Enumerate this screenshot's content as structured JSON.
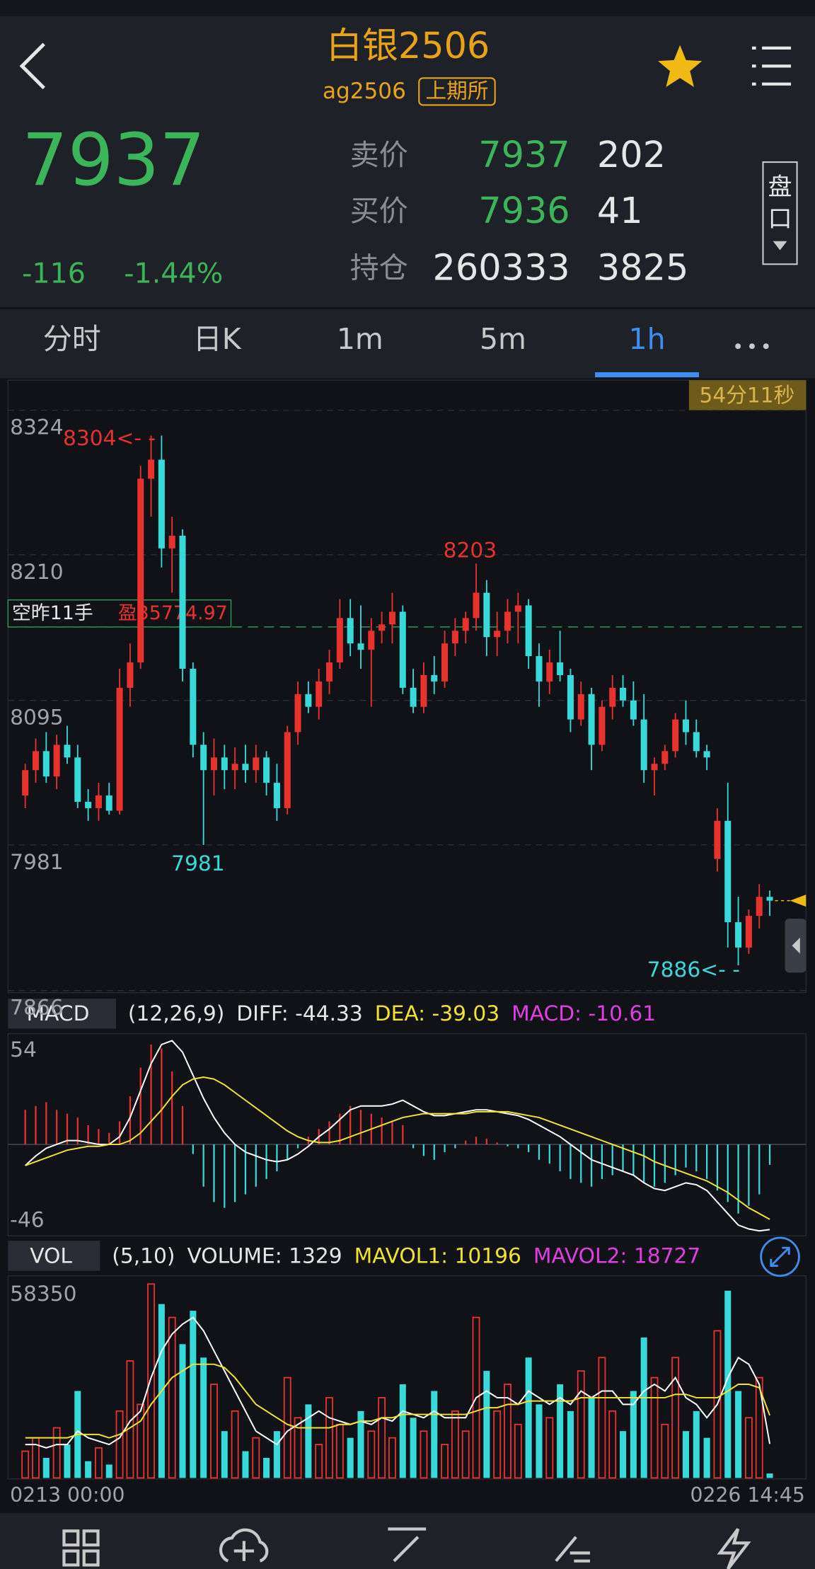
{
  "header": {
    "title": "白银2506",
    "code": "ag2506",
    "exchange": "上期所"
  },
  "quote": {
    "price": 7937,
    "change": -116,
    "change_pct": "-1.44%",
    "book": [
      {
        "label": "卖价",
        "price": 7937,
        "qty": 202
      },
      {
        "label": "买价",
        "price": 7936,
        "qty": 41
      },
      {
        "label": "持仓",
        "price": 260333,
        "qty": 3825
      }
    ],
    "depth_button": [
      "盘",
      "口"
    ]
  },
  "tabs": {
    "items": [
      "分时",
      "日K",
      "1m",
      "5m",
      "1h"
    ],
    "active": 4
  },
  "price_chart": {
    "type": "candlestick",
    "countdown": "54分11秒",
    "ylim": [
      7866,
      8324
    ],
    "yticks": [
      8324,
      8210,
      8095,
      7981,
      7866
    ],
    "up_color": "#e8322e",
    "down_color": "#38d9d9",
    "last_price": 7937,
    "position": {
      "label": "空昨11手",
      "pnl": "盈35774.97",
      "price": 8153
    },
    "annotations": [
      {
        "text": "8304<- -",
        "color": "#e8322e"
      },
      {
        "text": "8203",
        "color": "#e8322e"
      },
      {
        "text": "7981",
        "color": "#38d9d9"
      },
      {
        "text": "7886<- -",
        "color": "#38d9d9"
      }
    ],
    "candles": [
      [
        8020,
        8045,
        8010,
        8040
      ],
      [
        8040,
        8065,
        8030,
        8055
      ],
      [
        8055,
        8070,
        8030,
        8035
      ],
      [
        8035,
        8068,
        8025,
        8060
      ],
      [
        8060,
        8075,
        8045,
        8050
      ],
      [
        8050,
        8060,
        8010,
        8015
      ],
      [
        8015,
        8025,
        8000,
        8010
      ],
      [
        8010,
        8030,
        8000,
        8020
      ],
      [
        8020,
        8030,
        8005,
        8008
      ],
      [
        8008,
        8120,
        8005,
        8105
      ],
      [
        8105,
        8140,
        8090,
        8125
      ],
      [
        8125,
        8280,
        8120,
        8270
      ],
      [
        8270,
        8304,
        8240,
        8285
      ],
      [
        8285,
        8304,
        8200,
        8215
      ],
      [
        8215,
        8240,
        8180,
        8225
      ],
      [
        8225,
        8230,
        8110,
        8120
      ],
      [
        8120,
        8125,
        8050,
        8060
      ],
      [
        8060,
        8070,
        7981,
        8040
      ],
      [
        8040,
        8065,
        8020,
        8050
      ],
      [
        8050,
        8060,
        8025,
        8040
      ],
      [
        8040,
        8058,
        8025,
        8045
      ],
      [
        8045,
        8060,
        8030,
        8040
      ],
      [
        8040,
        8060,
        8030,
        8050
      ],
      [
        8050,
        8055,
        8020,
        8030
      ],
      [
        8030,
        8045,
        8000,
        8010
      ],
      [
        8010,
        8075,
        8005,
        8070
      ],
      [
        8070,
        8110,
        8060,
        8100
      ],
      [
        8100,
        8110,
        8085,
        8090
      ],
      [
        8090,
        8120,
        8080,
        8110
      ],
      [
        8110,
        8135,
        8100,
        8125
      ],
      [
        8125,
        8175,
        8120,
        8160
      ],
      [
        8160,
        8175,
        8130,
        8140
      ],
      [
        8140,
        8170,
        8120,
        8135
      ],
      [
        8135,
        8160,
        8090,
        8150
      ],
      [
        8150,
        8165,
        8140,
        8155
      ],
      [
        8155,
        8180,
        8140,
        8165
      ],
      [
        8165,
        8170,
        8100,
        8105
      ],
      [
        8105,
        8120,
        8085,
        8090
      ],
      [
        8090,
        8125,
        8085,
        8115
      ],
      [
        8115,
        8130,
        8100,
        8110
      ],
      [
        8110,
        8150,
        8105,
        8140
      ],
      [
        8140,
        8160,
        8130,
        8150
      ],
      [
        8150,
        8165,
        8140,
        8160
      ],
      [
        8160,
        8203,
        8150,
        8180
      ],
      [
        8180,
        8190,
        8130,
        8145
      ],
      [
        8145,
        8165,
        8130,
        8150
      ],
      [
        8150,
        8175,
        8140,
        8165
      ],
      [
        8165,
        8180,
        8140,
        8170
      ],
      [
        8170,
        8175,
        8120,
        8130
      ],
      [
        8130,
        8140,
        8090,
        8110
      ],
      [
        8110,
        8135,
        8100,
        8125
      ],
      [
        8125,
        8150,
        8110,
        8115
      ],
      [
        8115,
        8120,
        8070,
        8080
      ],
      [
        8080,
        8110,
        8075,
        8100
      ],
      [
        8100,
        8105,
        8040,
        8060
      ],
      [
        8060,
        8095,
        8055,
        8090
      ],
      [
        8090,
        8115,
        8080,
        8105
      ],
      [
        8105,
        8115,
        8090,
        8095
      ],
      [
        8095,
        8110,
        8075,
        8080
      ],
      [
        8080,
        8100,
        8030,
        8040
      ],
      [
        8040,
        8050,
        8020,
        8045
      ],
      [
        8045,
        8060,
        8040,
        8055
      ],
      [
        8055,
        8085,
        8050,
        8080
      ],
      [
        8080,
        8095,
        8060,
        8070
      ],
      [
        8070,
        8080,
        8050,
        8055
      ],
      [
        8055,
        8060,
        8040,
        8050
      ],
      [
        7970,
        8010,
        7960,
        8000
      ],
      [
        8000,
        8030,
        7900,
        7920
      ],
      [
        7920,
        7940,
        7886,
        7900
      ],
      [
        7900,
        7930,
        7895,
        7925
      ],
      [
        7925,
        7950,
        7915,
        7940
      ],
      [
        7940,
        7945,
        7925,
        7937
      ]
    ]
  },
  "macd": {
    "name": "MACD",
    "legend": [
      {
        "text": "(12,26,9)",
        "color": "#e6e6e6"
      },
      {
        "text": "DIFF: -44.33",
        "color": "#e6e6e6"
      },
      {
        "text": "DEA: -39.03",
        "color": "#f0e330"
      },
      {
        "text": "MACD: -10.61",
        "color": "#e03ee0"
      }
    ],
    "ylim": [
      -46,
      54
    ],
    "yticks": [
      54,
      -46
    ],
    "histogram": [
      18,
      20,
      22,
      18,
      16,
      14,
      10,
      8,
      6,
      12,
      25,
      40,
      52,
      50,
      38,
      20,
      -5,
      -22,
      -30,
      -33,
      -30,
      -26,
      -22,
      -18,
      -14,
      -8,
      -2,
      4,
      8,
      12,
      16,
      20,
      18,
      16,
      14,
      12,
      10,
      -2,
      -6,
      -8,
      -4,
      -2,
      2,
      4,
      3,
      1,
      -1,
      -2,
      -4,
      -8,
      -10,
      -14,
      -18,
      -20,
      -22,
      -18,
      -16,
      -14,
      -16,
      -20,
      -22,
      -20,
      -16,
      -12,
      -14,
      -18,
      -24,
      -30,
      -36,
      -32,
      -26,
      -10.61
    ],
    "series": [
      {
        "color": "#ffffff",
        "values": [
          -11,
          -6,
          -2,
          0,
          2,
          2,
          1,
          0,
          0,
          4,
          14,
          28,
          42,
          52,
          54,
          48,
          36,
          24,
          14,
          6,
          0,
          -4,
          -6,
          -8,
          -9,
          -8,
          -5,
          -1,
          4,
          8,
          13,
          18,
          20,
          20,
          20,
          21,
          23,
          20,
          17,
          15,
          15,
          16,
          17,
          18,
          18,
          17,
          16,
          15,
          13,
          10,
          7,
          4,
          0,
          -4,
          -8,
          -10,
          -12,
          -14,
          -16,
          -20,
          -23,
          -24,
          -22,
          -20,
          -21,
          -24,
          -30,
          -36,
          -42,
          -44,
          -45,
          -44.33
        ]
      },
      {
        "color": "#f0e330",
        "values": [
          -11,
          -9,
          -7,
          -5,
          -3,
          -2,
          -1,
          -1,
          0,
          0,
          2,
          6,
          12,
          18,
          25,
          31,
          34,
          35,
          34,
          31,
          27,
          23,
          19,
          15,
          11,
          7,
          4,
          2,
          1,
          1,
          2,
          4,
          6,
          8,
          10,
          12,
          14,
          15,
          16,
          16,
          16,
          16,
          16,
          17,
          17,
          17,
          17,
          16,
          15,
          14,
          12,
          10,
          8,
          6,
          4,
          2,
          0,
          -2,
          -4,
          -6,
          -9,
          -11,
          -13,
          -15,
          -17,
          -19,
          -22,
          -25,
          -29,
          -33,
          -36,
          -39.03
        ]
      }
    ]
  },
  "volume": {
    "name": "VOL",
    "legend": [
      {
        "text": "(5,10)",
        "color": "#e6e6e6"
      },
      {
        "text": "VOLUME: 1329",
        "color": "#e6e6e6"
      },
      {
        "text": "MAVOL1: 10196",
        "color": "#f0e330"
      },
      {
        "text": "MAVOL2: 18727",
        "color": "#e03ee0"
      }
    ],
    "ylim": [
      0,
      58350
    ],
    "yticks": [
      58350
    ],
    "values": [
      8000,
      12000,
      6000,
      15000,
      10000,
      26000,
      5000,
      9000,
      4000,
      20000,
      35000,
      22000,
      58000,
      52000,
      48000,
      40000,
      50000,
      36000,
      28000,
      14000,
      20000,
      8000,
      12000,
      6000,
      14000,
      30000,
      18000,
      22000,
      10000,
      24000,
      16000,
      12000,
      20000,
      14000,
      24000,
      12000,
      28000,
      18000,
      14000,
      26000,
      10000,
      20000,
      14000,
      48000,
      32000,
      20000,
      28000,
      16000,
      36000,
      22000,
      18000,
      28000,
      20000,
      32000,
      24000,
      36000,
      20000,
      14000,
      26000,
      42000,
      30000,
      16000,
      36000,
      14000,
      20000,
      12000,
      44000,
      56000,
      26000,
      18000,
      30000,
      1329
    ],
    "series": [
      {
        "color": "#ffffff",
        "values": [
          10000,
          10000,
          9000,
          10000,
          10000,
          14000,
          12000,
          11000,
          10000,
          12000,
          17000,
          20000,
          30000,
          38000,
          43000,
          46000,
          48000,
          44000,
          38000,
          32000,
          26000,
          20000,
          14000,
          12000,
          10000,
          14000,
          16000,
          18000,
          20000,
          18000,
          17000,
          16000,
          17000,
          16000,
          18000,
          17000,
          20000,
          19000,
          18000,
          20000,
          18000,
          18000,
          18000,
          24000,
          26000,
          24000,
          24000,
          22000,
          26000,
          24000,
          22000,
          24000,
          22000,
          26000,
          24000,
          26000,
          26000,
          22000,
          22000,
          26000,
          28000,
          26000,
          30000,
          24000,
          22000,
          18000,
          22000,
          30000,
          36000,
          34000,
          28000,
          10196
        ]
      },
      {
        "color": "#f0e330",
        "values": [
          12000,
          12000,
          12000,
          12000,
          12000,
          13000,
          13000,
          13000,
          12000,
          13000,
          15000,
          17000,
          22000,
          26000,
          30000,
          32000,
          34000,
          34000,
          34000,
          33000,
          30000,
          26000,
          22000,
          20000,
          18000,
          16000,
          15000,
          15000,
          15000,
          15000,
          16000,
          16000,
          17000,
          17000,
          18000,
          18000,
          19000,
          19000,
          19000,
          19000,
          19000,
          19000,
          19000,
          20000,
          21000,
          21000,
          22000,
          22000,
          23000,
          23000,
          23000,
          23000,
          23000,
          24000,
          24000,
          24000,
          24000,
          24000,
          24000,
          24000,
          24000,
          24000,
          25000,
          25000,
          24000,
          24000,
          24000,
          26000,
          28000,
          28000,
          27000,
          18727
        ]
      }
    ]
  },
  "x_axis": {
    "start": "0213 00:00",
    "end": "0226 14:45"
  }
}
